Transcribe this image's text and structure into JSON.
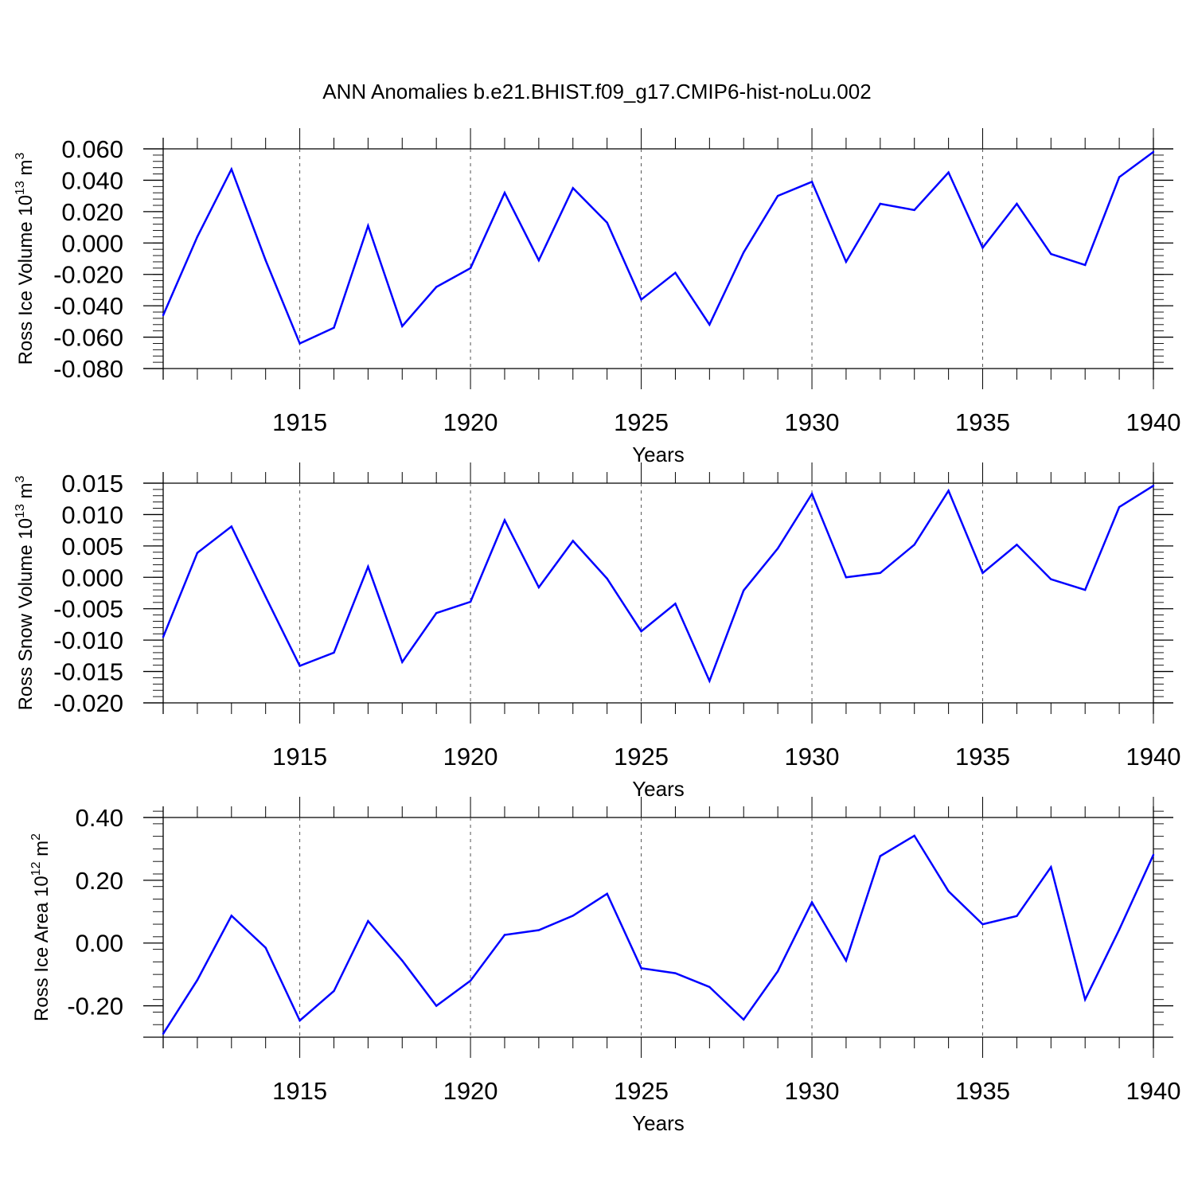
{
  "figure_title": "ANN Anomalies b.e21.BHIST.f09_g17.CMIP6-hist-noLu.002",
  "colors": {
    "series": "#0000ff",
    "axis": "#000000",
    "grid": "#555555",
    "background": "#ffffff"
  },
  "chart_data": [
    {
      "type": "line",
      "title": "",
      "xlabel": "Years",
      "ylabel": {
        "text": "Ross Ice Volume 10",
        "exp": "13",
        "unit": "m",
        "unit_exp": "3"
      },
      "xlim": [
        1911,
        1940
      ],
      "ylim": [
        -0.08,
        0.06
      ],
      "x_ticks": [
        1915,
        1920,
        1925,
        1930,
        1935,
        1940
      ],
      "x_tick_labels": [
        "1915",
        "1920",
        "1925",
        "1930",
        "1935",
        "1940"
      ],
      "y_ticks": [
        -0.08,
        -0.06,
        -0.04,
        -0.02,
        0.0,
        0.02,
        0.04,
        0.06
      ],
      "y_tick_labels": [
        "-0.080",
        "-0.060",
        "-0.040",
        "-0.020",
        "0.000",
        "0.020",
        "0.040",
        "0.060"
      ],
      "y_minor_step": 0.004,
      "grid": "vertical dashed at major x ticks",
      "x": [
        1911,
        1912,
        1913,
        1914,
        1915,
        1916,
        1917,
        1918,
        1919,
        1920,
        1921,
        1922,
        1923,
        1924,
        1925,
        1926,
        1927,
        1928,
        1929,
        1930,
        1931,
        1932,
        1933,
        1934,
        1935,
        1936,
        1937,
        1938,
        1939,
        1940
      ],
      "series": [
        {
          "name": "Ross Ice Volume",
          "values": [
            -0.046,
            0.004,
            0.047,
            -0.011,
            -0.064,
            -0.054,
            0.011,
            -0.053,
            -0.028,
            -0.016,
            0.032,
            -0.011,
            0.035,
            0.013,
            -0.036,
            -0.019,
            -0.052,
            -0.006,
            0.03,
            0.039,
            -0.012,
            0.025,
            0.021,
            0.045,
            -0.003,
            0.025,
            -0.007,
            -0.014,
            0.042,
            0.058
          ]
        }
      ]
    },
    {
      "type": "line",
      "title": "",
      "xlabel": "Years",
      "ylabel": {
        "text": "Ross Snow Volume 10",
        "exp": "13",
        "unit": "m",
        "unit_exp": "3"
      },
      "xlim": [
        1911,
        1940
      ],
      "ylim": [
        -0.02,
        0.015
      ],
      "x_ticks": [
        1915,
        1920,
        1925,
        1930,
        1935,
        1940
      ],
      "x_tick_labels": [
        "1915",
        "1920",
        "1925",
        "1930",
        "1935",
        "1940"
      ],
      "y_ticks": [
        -0.02,
        -0.015,
        -0.01,
        -0.005,
        0.0,
        0.005,
        0.01,
        0.015
      ],
      "y_tick_labels": [
        "-0.020",
        "-0.015",
        "-0.010",
        "-0.005",
        "0.000",
        "0.005",
        "0.010",
        "0.015"
      ],
      "y_minor_step": 0.001,
      "grid": "vertical dashed at major x ticks",
      "x": [
        1911,
        1912,
        1913,
        1914,
        1915,
        1916,
        1917,
        1918,
        1919,
        1920,
        1921,
        1922,
        1923,
        1924,
        1925,
        1926,
        1927,
        1928,
        1929,
        1930,
        1931,
        1932,
        1933,
        1934,
        1935,
        1936,
        1937,
        1938,
        1939,
        1940
      ],
      "series": [
        {
          "name": "Ross Snow Volume",
          "values": [
            -0.0095,
            0.0039,
            0.0081,
            -0.0031,
            -0.0141,
            -0.012,
            0.0017,
            -0.0135,
            -0.0057,
            -0.0039,
            0.0091,
            -0.0016,
            0.0058,
            -0.0002,
            -0.0086,
            -0.0042,
            -0.0165,
            -0.0021,
            0.0046,
            0.0133,
            0.0,
            0.0007,
            0.0052,
            0.0138,
            0.0007,
            0.0052,
            -0.0003,
            -0.002,
            0.0112,
            0.0146
          ]
        }
      ]
    },
    {
      "type": "line",
      "title": "",
      "xlabel": "Years",
      "ylabel": {
        "text": "Ross Ice Area 10",
        "exp": "12",
        "unit": "m",
        "unit_exp": "2"
      },
      "xlim": [
        1911,
        1940
      ],
      "ylim": [
        -0.3,
        0.4
      ],
      "x_ticks": [
        1915,
        1920,
        1925,
        1930,
        1935,
        1940
      ],
      "x_tick_labels": [
        "1915",
        "1920",
        "1925",
        "1930",
        "1935",
        "1940"
      ],
      "y_ticks": [
        -0.2,
        0.0,
        0.2,
        0.4
      ],
      "y_tick_labels": [
        "-0.20",
        "0.00",
        "0.20",
        "0.40"
      ],
      "y_minor_step": 0.04,
      "grid": "vertical dashed at major x ticks",
      "x": [
        1911,
        1912,
        1913,
        1914,
        1915,
        1916,
        1917,
        1918,
        1919,
        1920,
        1921,
        1922,
        1923,
        1924,
        1925,
        1926,
        1927,
        1928,
        1929,
        1930,
        1931,
        1932,
        1933,
        1934,
        1935,
        1936,
        1937,
        1938,
        1939,
        1940
      ],
      "series": [
        {
          "name": "Ross Ice Area",
          "values": [
            -0.289,
            -0.118,
            0.087,
            -0.015,
            -0.247,
            -0.153,
            0.07,
            -0.056,
            -0.2,
            -0.12,
            0.026,
            0.041,
            0.087,
            0.157,
            -0.08,
            -0.096,
            -0.14,
            -0.244,
            -0.09,
            0.13,
            -0.056,
            0.277,
            0.342,
            0.165,
            0.06,
            0.086,
            0.242,
            -0.18,
            0.043,
            0.281
          ]
        }
      ]
    }
  ]
}
